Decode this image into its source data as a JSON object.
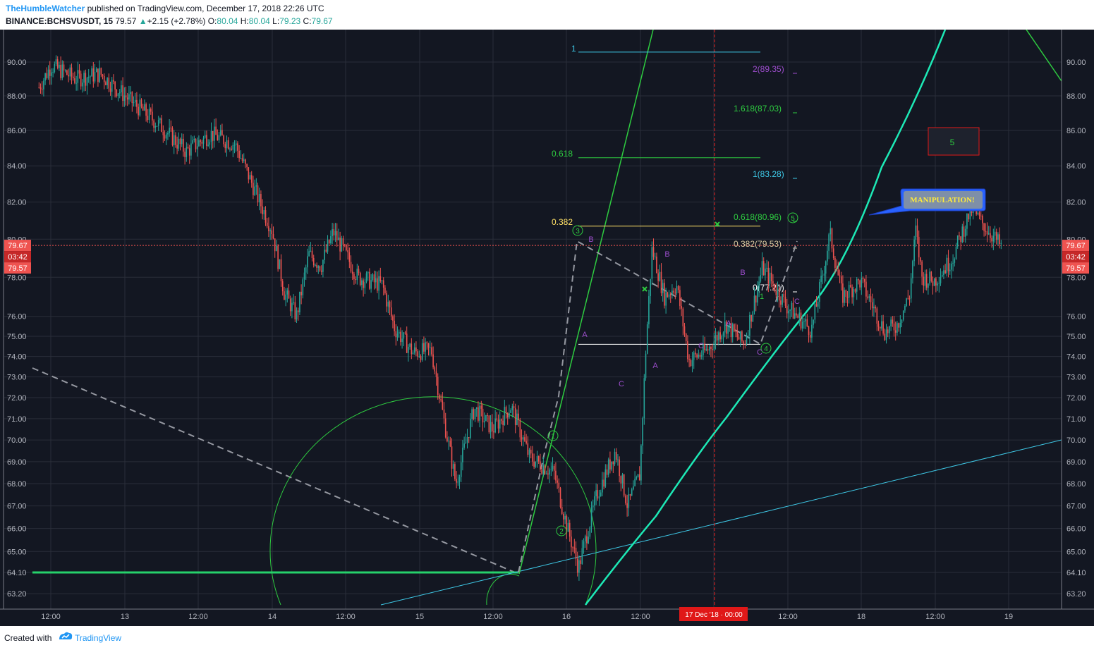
{
  "header": {
    "author": "TheHumbleWatcher",
    "published": "published on TradingView.com, December 17, 2018 22:26 UTC",
    "symbol": "BINANCE:BCHSVUSDT, 15",
    "last": "79.57",
    "change": "+2.15 (+2.78%)",
    "o_label": "O:",
    "o_value": "80.04",
    "h_label": "H:",
    "h_value": "80.04",
    "l_label": "L:",
    "l_value": "79.23",
    "c_label": "C:",
    "c_value": "79.67"
  },
  "footer": {
    "created_with": "Created with",
    "brand": "TradingView"
  },
  "colors": {
    "background": "#131722",
    "grid": "#2a2e39",
    "up": "#26a69a",
    "down": "#ef5350",
    "fib_cyan": "#3ec8e6",
    "fib_green": "#2ecc40",
    "wave_purple": "#9c4dcc",
    "trend": "#1de9b6"
  },
  "chart_data": {
    "type": "candlestick",
    "symbol": "BINANCE:BCHSVUSDT",
    "interval": "15",
    "y_ticks": [
      90.0,
      88.0,
      86.0,
      84.0,
      82.0,
      80.0,
      78.0,
      76.0,
      75.0,
      74.0,
      73.0,
      72.0,
      71.0,
      70.0,
      69.0,
      68.0,
      67.0,
      66.0,
      65.0,
      64.1,
      63.2
    ],
    "ylim": [
      62.7,
      91.5
    ],
    "y_scale": "log",
    "x_ticks": [
      "12:00",
      "13",
      "12:00",
      "14",
      "12:00",
      "15",
      "12:00",
      "16",
      "12:00",
      "17 Dec '18 · 00:00",
      "12:00",
      "18",
      "12:00",
      "19"
    ],
    "price_labels": {
      "current": "79.67",
      "countdown": "03:42",
      "previous": "79.57"
    },
    "price_series": [
      {
        "t": "Dec 12 10:00",
        "v": 88.5
      },
      {
        "t": "Dec 12 12:00",
        "v": 89.8
      },
      {
        "t": "Dec 12 16:00",
        "v": 89.0
      },
      {
        "t": "Dec 12 20:00",
        "v": 89.3
      },
      {
        "t": "Dec 13 00:00",
        "v": 88.0
      },
      {
        "t": "Dec 13 06:00",
        "v": 86.2
      },
      {
        "t": "Dec 13 10:00",
        "v": 84.8
      },
      {
        "t": "Dec 13 14:00",
        "v": 85.8
      },
      {
        "t": "Dec 13 18:00",
        "v": 85.2
      },
      {
        "t": "Dec 13 22:00",
        "v": 82.0
      },
      {
        "t": "Dec 14 00:00",
        "v": 80.5
      },
      {
        "t": "Dec 14 02:00",
        "v": 77.2
      },
      {
        "t": "Dec 14 04:00",
        "v": 76.0
      },
      {
        "t": "Dec 14 06:00",
        "v": 79.2
      },
      {
        "t": "Dec 14 08:00",
        "v": 78.6
      },
      {
        "t": "Dec 14 10:00",
        "v": 80.4
      },
      {
        "t": "Dec 14 14:00",
        "v": 78.0
      },
      {
        "t": "Dec 14 18:00",
        "v": 77.6
      },
      {
        "t": "Dec 14 20:00",
        "v": 75.4
      },
      {
        "t": "Dec 14 23:00",
        "v": 74.2
      },
      {
        "t": "Dec 15 02:00",
        "v": 74.3
      },
      {
        "t": "Dec 15 04:00",
        "v": 71.0
      },
      {
        "t": "Dec 15 06:00",
        "v": 68.0
      },
      {
        "t": "Dec 15 09:00",
        "v": 71.5
      },
      {
        "t": "Dec 15 12:00",
        "v": 70.5
      },
      {
        "t": "Dec 15 15:00",
        "v": 71.6
      },
      {
        "t": "Dec 15 18:00",
        "v": 69.2
      },
      {
        "t": "Dec 15 22:00",
        "v": 68.5
      },
      {
        "t": "Dec 16 00:00",
        "v": 66.2
      },
      {
        "t": "Dec 16 02:00",
        "v": 64.3
      },
      {
        "t": "Dec 16 05:00",
        "v": 67.5
      },
      {
        "t": "Dec 16 08:00",
        "v": 69.5
      },
      {
        "t": "Dec 16 10:00",
        "v": 67.0
      },
      {
        "t": "Dec 16 12:00",
        "v": 68.4
      },
      {
        "t": "Dec 16 13:00",
        "v": 74.5
      },
      {
        "t": "Dec 16 14:00",
        "v": 79.5
      },
      {
        "t": "Dec 16 16:00",
        "v": 77.0
      },
      {
        "t": "Dec 16 18:00",
        "v": 77.6
      },
      {
        "t": "Dec 16 20:00",
        "v": 73.8
      },
      {
        "t": "Dec 16 23:00",
        "v": 74.3
      },
      {
        "t": "Dec 17 02:00",
        "v": 75.6
      },
      {
        "t": "Dec 17 05:00",
        "v": 74.6
      },
      {
        "t": "Dec 17 08:00",
        "v": 78.5
      },
      {
        "t": "Dec 17 12:00",
        "v": 76.5
      },
      {
        "t": "Dec 17 16:00",
        "v": 75.3
      },
      {
        "t": "Dec 17 18:00",
        "v": 78.4
      },
      {
        "t": "Dec 17 19:00",
        "v": 80.3
      },
      {
        "t": "Dec 17 21:00",
        "v": 77.0
      },
      {
        "t": "Dec 18 00:00",
        "v": 77.8
      },
      {
        "t": "Dec 18 04:00",
        "v": 75.2
      },
      {
        "t": "Dec 18 06:00",
        "v": 75.6
      },
      {
        "t": "Dec 18 08:00",
        "v": 77.1
      },
      {
        "t": "Dec 18 09:00",
        "v": 80.5
      },
      {
        "t": "Dec 18 10:00",
        "v": 78.0
      },
      {
        "t": "Dec 18 12:00",
        "v": 77.8
      },
      {
        "t": "Dec 18 15:00",
        "v": 79.0
      },
      {
        "t": "Dec 18 18:00",
        "v": 81.6
      },
      {
        "t": "Dec 18 21:00",
        "v": 80.4
      },
      {
        "t": "Dec 18 23:00",
        "v": 79.6
      }
    ],
    "fib_levels": [
      {
        "label": "1",
        "value": 90.6,
        "color": "cyan"
      },
      {
        "label": "2(89.35)",
        "value": 89.35,
        "color": "purple"
      },
      {
        "label": "1.618(87.03)",
        "value": 87.03,
        "color": "green"
      },
      {
        "label": "0.618",
        "value": 84.45,
        "color": "green"
      },
      {
        "label": "1(83.28)",
        "value": 83.28,
        "color": "cyan"
      },
      {
        "label": "0.618(80.96)",
        "value": 80.96,
        "color": "green"
      },
      {
        "label": "0.382",
        "value": 80.7,
        "color": "yellow"
      },
      {
        "label": "0.382(79.53)",
        "value": 79.53,
        "color": "tan"
      },
      {
        "label": "0(77.21)",
        "value": 77.21,
        "color": "white"
      }
    ],
    "wave_labels": [
      "1",
      "2",
      "3",
      "A",
      "B",
      "C",
      "A",
      "B",
      "C",
      "A",
      "B",
      "C",
      "4",
      "5",
      "1",
      "C"
    ],
    "annotations": {
      "callout": "MANIPULATION!",
      "box": "5"
    }
  }
}
